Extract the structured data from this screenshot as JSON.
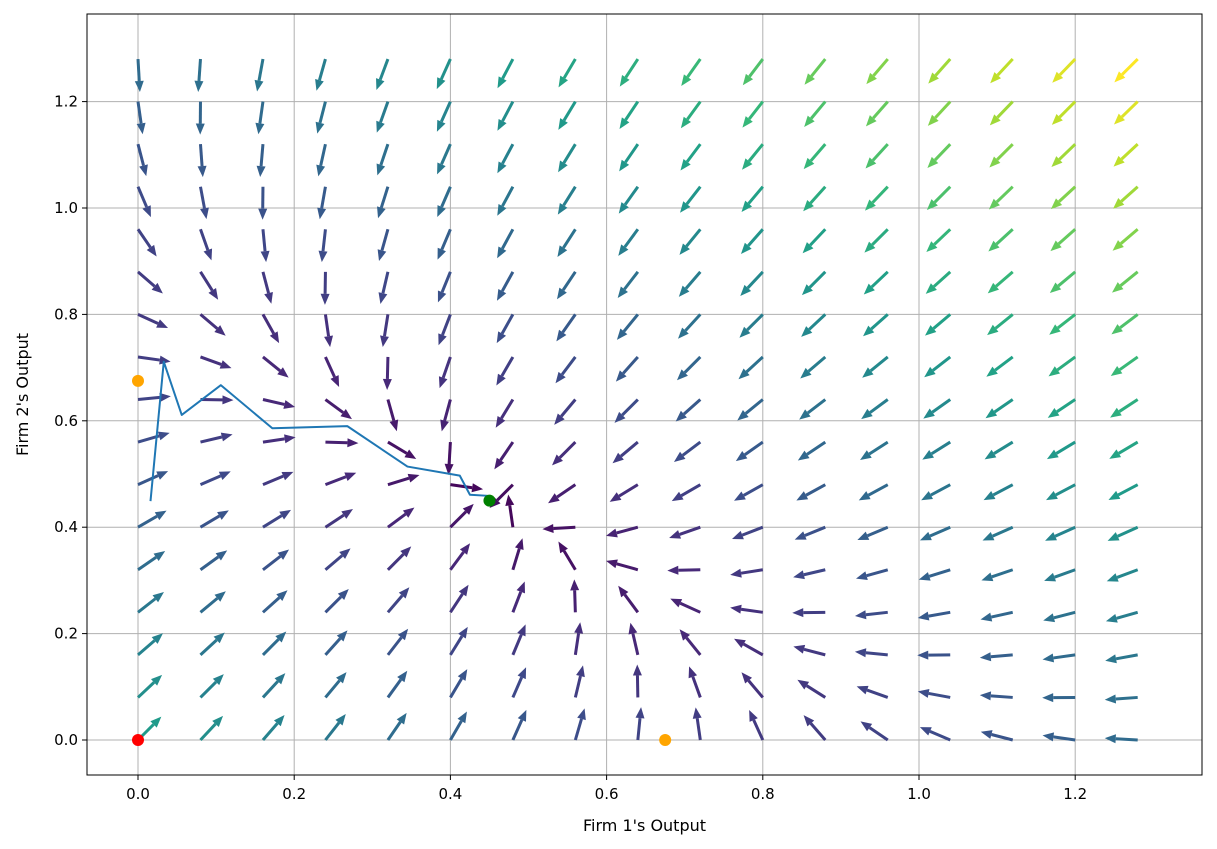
{
  "chart_data": {
    "type": "quiver",
    "title": "",
    "xlabel": "Firm 1's Output",
    "ylabel": "Firm 2's Output",
    "xlim": [
      -0.066,
      1.366
    ],
    "ylim": [
      -0.066,
      1.366
    ],
    "xticks": [
      0.0,
      0.2,
      0.4,
      0.6,
      0.8,
      1.0,
      1.2
    ],
    "yticks": [
      0.0,
      0.2,
      0.4,
      0.6,
      0.8,
      1.0,
      1.2
    ],
    "xtick_labels": [
      "0.0",
      "0.2",
      "0.4",
      "0.6",
      "0.8",
      "1.0",
      "1.2"
    ],
    "ytick_labels": [
      "0.0",
      "0.2",
      "0.4",
      "0.6",
      "0.8",
      "1.0",
      "1.2"
    ],
    "grid": true,
    "vector_field": {
      "description_of_rule": "best-response dynamics of Cournot duopoly",
      "grid_start": 0.0,
      "grid_step": 0.08,
      "grid_count": 17,
      "best_response_intercept": 0.675,
      "best_response_slope": 0.5,
      "colormap": "viridis"
    },
    "trajectory": {
      "color": "#1f77b4",
      "x": [
        0.016,
        0.033,
        0.056,
        0.106,
        0.172,
        0.268,
        0.345,
        0.412,
        0.425,
        0.448
      ],
      "y": [
        0.449,
        0.711,
        0.611,
        0.667,
        0.586,
        0.59,
        0.514,
        0.497,
        0.461,
        0.459
      ]
    },
    "points": [
      {
        "x": 0.0,
        "y": 0.0,
        "color": "#ff0000"
      },
      {
        "x": 0.0,
        "y": 0.675,
        "color": "#ffa500"
      },
      {
        "x": 0.675,
        "y": 0.0,
        "color": "#ffa500"
      },
      {
        "x": 0.45,
        "y": 0.45,
        "color": "#008000"
      }
    ]
  }
}
